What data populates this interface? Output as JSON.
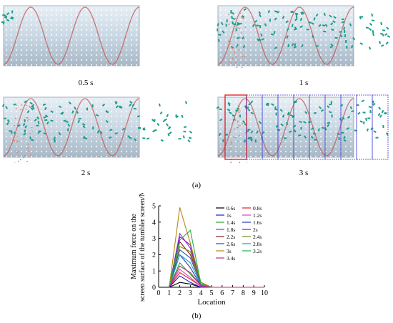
{
  "panels": [
    {
      "caption": "0.5 s"
    },
    {
      "caption": "1 s"
    },
    {
      "caption": "2 s"
    },
    {
      "caption": "3 s"
    }
  ],
  "label_a": "(a)",
  "label_b": "(b)",
  "colors": {
    "cylinder": "#c9d8e4",
    "helix": "#c0504d",
    "particles": "#1a9e8a",
    "falling": "#d9826b",
    "zone_box_red": "#e0262b",
    "zone_box_blue": "#3c3cd6"
  },
  "chart_data": {
    "type": "line",
    "ylabel": "Maximum force on the screen surface of the tumbler screen/N",
    "xlabel": "Location",
    "xlim": [
      0,
      10
    ],
    "ylim": [
      0,
      5
    ],
    "xticks": [
      "0",
      "1",
      "2",
      "3",
      "4",
      "5",
      "6",
      "7",
      "8",
      "9",
      "10"
    ],
    "yticks": [
      "0",
      "1",
      "2",
      "3",
      "4",
      "5"
    ],
    "x": [
      1,
      2,
      3,
      4,
      5,
      6,
      7,
      8,
      9,
      10
    ],
    "legend_position": "top-right",
    "series": [
      {
        "name": "0.6s",
        "color": "#000000",
        "values": [
          0,
          0.3,
          0.2,
          0,
          0,
          0,
          0,
          0,
          0,
          0
        ]
      },
      {
        "name": "0.8s",
        "color": "#e02020",
        "values": [
          0,
          0.9,
          0.5,
          0.05,
          0,
          0,
          0,
          0,
          0,
          0
        ]
      },
      {
        "name": "1s",
        "color": "#1a1ad0",
        "values": [
          0,
          0.7,
          0.3,
          0,
          0,
          0,
          0,
          0,
          0,
          0
        ]
      },
      {
        "name": "1.2s",
        "color": "#e040c0",
        "values": [
          0,
          1.1,
          0.6,
          0.05,
          0,
          0,
          0,
          0,
          0,
          0
        ]
      },
      {
        "name": "1.4s",
        "color": "#2aa52a",
        "values": [
          0,
          1.5,
          0.8,
          0.1,
          0,
          0,
          0,
          0,
          0,
          0
        ]
      },
      {
        "name": "1.6s",
        "color": "#2040b0",
        "values": [
          0,
          2.0,
          1.2,
          0.1,
          0,
          0,
          0,
          0,
          0,
          0
        ]
      },
      {
        "name": "1.8s",
        "color": "#8a2be2",
        "values": [
          0,
          3.3,
          2.4,
          0.2,
          0,
          0,
          0,
          0,
          0,
          0
        ]
      },
      {
        "name": "2s",
        "color": "#7a1fa2",
        "values": [
          0,
          3.1,
          2.6,
          0.2,
          0,
          0,
          0,
          0,
          0,
          0
        ]
      },
      {
        "name": "2.2s",
        "color": "#8b1a1a",
        "values": [
          0,
          2.8,
          2.0,
          0.3,
          0,
          0,
          0,
          0,
          0,
          0
        ]
      },
      {
        "name": "2.4s",
        "color": "#6b8e23",
        "values": [
          0,
          2.5,
          2.2,
          0.2,
          0,
          0,
          0,
          0,
          0,
          0
        ]
      },
      {
        "name": "2.6s",
        "color": "#2f4f9f",
        "values": [
          0,
          2.3,
          1.8,
          0.2,
          0,
          0,
          0,
          0,
          0,
          0
        ]
      },
      {
        "name": "2.8s",
        "color": "#1f9fc0",
        "values": [
          0,
          2.0,
          1.5,
          0.15,
          0,
          0,
          0,
          0,
          0,
          0
        ]
      },
      {
        "name": "3s",
        "color": "#b8860b",
        "values": [
          0,
          4.9,
          2.7,
          0.3,
          0,
          0,
          0,
          0,
          0,
          0
        ]
      },
      {
        "name": "3.2s",
        "color": "#22b14c",
        "values": [
          0,
          2.9,
          3.5,
          0.2,
          0,
          0,
          0,
          0,
          0,
          0
        ]
      },
      {
        "name": "3.4s",
        "color": "#c0287f",
        "values": [
          0,
          1.3,
          0.9,
          0.1,
          0,
          0,
          0,
          0,
          0,
          0
        ]
      }
    ]
  }
}
